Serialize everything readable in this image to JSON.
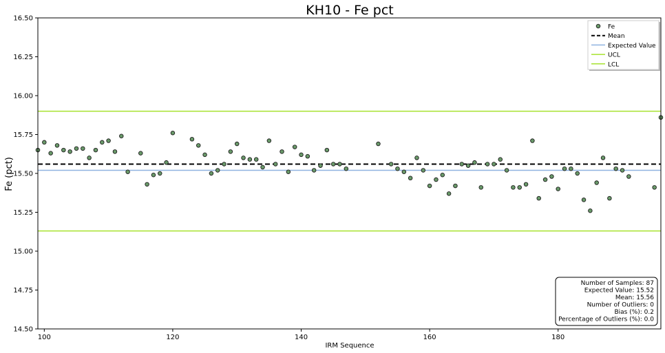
{
  "chart_data": {
    "type": "scatter",
    "title": "KH10 - Fe pct",
    "xlabel": "IRM Sequence",
    "ylabel": "Fe (pct)",
    "xlim": [
      99,
      196
    ],
    "ylim": [
      14.5,
      16.5
    ],
    "xticks": [
      100,
      120,
      140,
      160,
      180
    ],
    "yticks": [
      14.5,
      14.75,
      15.0,
      15.25,
      15.5,
      15.75,
      16.0,
      16.25,
      16.5
    ],
    "ytick_labels": [
      "14.50",
      "14.75",
      "15.00",
      "15.25",
      "15.50",
      "15.75",
      "16.00",
      "16.25",
      "16.50"
    ],
    "grid": false,
    "legend_position": "top-right",
    "series": [
      {
        "name": "Fe",
        "color": "#6a9a6a",
        "points": [
          [
            99,
            15.65
          ],
          [
            100,
            15.7
          ],
          [
            101,
            15.63
          ],
          [
            102,
            15.68
          ],
          [
            103,
            15.65
          ],
          [
            104,
            15.64
          ],
          [
            105,
            15.66
          ],
          [
            106,
            15.66
          ],
          [
            107,
            15.6
          ],
          [
            108,
            15.65
          ],
          [
            109,
            15.7
          ],
          [
            110,
            15.71
          ],
          [
            111,
            15.64
          ],
          [
            112,
            15.74
          ],
          [
            113,
            15.51
          ],
          [
            115,
            15.63
          ],
          [
            116,
            15.43
          ],
          [
            117,
            15.49
          ],
          [
            118,
            15.5
          ],
          [
            119,
            15.57
          ],
          [
            120,
            15.76
          ],
          [
            123,
            15.72
          ],
          [
            124,
            15.68
          ],
          [
            125,
            15.62
          ],
          [
            126,
            15.5
          ],
          [
            127,
            15.52
          ],
          [
            128,
            15.56
          ],
          [
            129,
            15.64
          ],
          [
            130,
            15.69
          ],
          [
            131,
            15.6
          ],
          [
            132,
            15.59
          ],
          [
            133,
            15.59
          ],
          [
            134,
            15.54
          ],
          [
            135,
            15.71
          ],
          [
            136,
            15.56
          ],
          [
            137,
            15.64
          ],
          [
            138,
            15.51
          ],
          [
            139,
            15.67
          ],
          [
            140,
            15.62
          ],
          [
            141,
            15.61
          ],
          [
            142,
            15.52
          ],
          [
            143,
            15.55
          ],
          [
            144,
            15.65
          ],
          [
            145,
            15.56
          ],
          [
            146,
            15.56
          ],
          [
            147,
            15.53
          ],
          [
            152,
            15.69
          ],
          [
            154,
            15.56
          ],
          [
            155,
            15.53
          ],
          [
            156,
            15.51
          ],
          [
            157,
            15.47
          ],
          [
            158,
            15.6
          ],
          [
            159,
            15.52
          ],
          [
            160,
            15.42
          ],
          [
            161,
            15.46
          ],
          [
            162,
            15.49
          ],
          [
            163,
            15.37
          ],
          [
            164,
            15.42
          ],
          [
            165,
            15.56
          ],
          [
            166,
            15.55
          ],
          [
            167,
            15.57
          ],
          [
            168,
            15.41
          ],
          [
            169,
            15.56
          ],
          [
            170,
            15.56
          ],
          [
            171,
            15.59
          ],
          [
            172,
            15.52
          ],
          [
            173,
            15.41
          ],
          [
            174,
            15.41
          ],
          [
            175,
            15.43
          ],
          [
            176,
            15.71
          ],
          [
            177,
            15.34
          ],
          [
            178,
            15.46
          ],
          [
            179,
            15.48
          ],
          [
            180,
            15.4
          ],
          [
            181,
            15.53
          ],
          [
            182,
            15.53
          ],
          [
            183,
            15.5
          ],
          [
            184,
            15.33
          ],
          [
            185,
            15.26
          ],
          [
            186,
            15.44
          ],
          [
            187,
            15.6
          ],
          [
            188,
            15.34
          ],
          [
            189,
            15.53
          ],
          [
            190,
            15.52
          ],
          [
            191,
            15.48
          ],
          [
            195,
            15.41
          ],
          [
            196,
            15.86
          ]
        ]
      }
    ],
    "lines": [
      {
        "name": "Mean",
        "value": 15.56,
        "color": "#000000",
        "style": "dashed"
      },
      {
        "name": "Expected Value",
        "value": 15.52,
        "color": "#8fb3e0",
        "style": "solid"
      },
      {
        "name": "UCL",
        "value": 15.9,
        "color": "#a6e22e",
        "style": "solid"
      },
      {
        "name": "LCL",
        "value": 15.13,
        "color": "#a6e22e",
        "style": "solid"
      }
    ],
    "stats": [
      "Number of Samples: 87",
      "Expected Value: 15.52",
      "Mean: 15.56",
      "Number of Outliers: 0",
      "Bias (%): 0.2",
      "Percentage of Outliers (%): 0.0"
    ]
  }
}
